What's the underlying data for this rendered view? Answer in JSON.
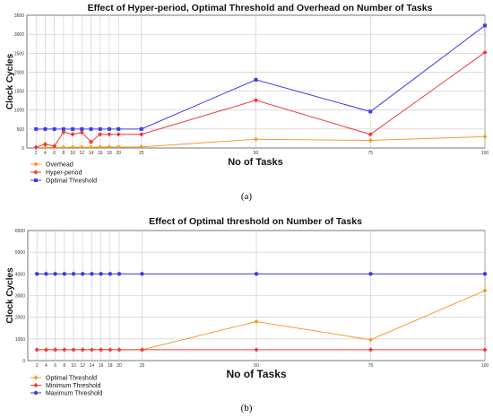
{
  "colors": {
    "orange": "#f39c2b",
    "red": "#f03a3a",
    "blue": "#3b3bea",
    "grid": "#c8c8c8",
    "axis": "#555555"
  },
  "captions": [
    "(a)",
    "(b)"
  ],
  "chart_data": [
    {
      "type": "line",
      "title": "Effect of Hyper-period, Optimal Threshold and Overhead on Number of Tasks",
      "xlabel": "No of Tasks",
      "ylabel": "Clock Cycles",
      "x": [
        2,
        4,
        6,
        8,
        10,
        12,
        14,
        16,
        18,
        20,
        25,
        50,
        75,
        100
      ],
      "xticks": [
        "2",
        "4",
        "6",
        "8",
        "10",
        "12",
        "14",
        "16",
        "18",
        "20",
        "25",
        "50",
        "75",
        "100"
      ],
      "ylim": [
        0,
        3500
      ],
      "yticks": [
        "0",
        "500",
        "1000",
        "1500",
        "2000",
        "2500",
        "3000",
        "3500"
      ],
      "grid": true,
      "legend_position": "bottom-left",
      "series": [
        {
          "name": "Overhead",
          "color": "#f39c2b",
          "marker": "diamond",
          "values": [
            10,
            14,
            16,
            18,
            20,
            22,
            22,
            24,
            26,
            28,
            30,
            230,
            200,
            300
          ]
        },
        {
          "name": "Hyper-period",
          "color": "#f03a3a",
          "marker": "diamond",
          "values": [
            20,
            100,
            50,
            420,
            360,
            410,
            160,
            360,
            360,
            360,
            360,
            1260,
            360,
            2520
          ]
        },
        {
          "name": "Optimal Threshold",
          "color": "#3b3bea",
          "marker": "square",
          "values": [
            500,
            500,
            500,
            500,
            500,
            500,
            500,
            500,
            500,
            500,
            500,
            1800,
            960,
            3230
          ]
        }
      ]
    },
    {
      "type": "line",
      "title": "Effect of Optimal threshold on Number of Tasks",
      "xlabel": "No of Tasks",
      "ylabel": "Clock Cycles",
      "x": [
        2,
        4,
        6,
        8,
        10,
        12,
        14,
        16,
        18,
        20,
        25,
        50,
        75,
        100
      ],
      "xticks": [
        "2",
        "4",
        "6",
        "8",
        "10",
        "12",
        "14",
        "16",
        "18",
        "20",
        "25",
        "50",
        "75",
        "100"
      ],
      "ylim": [
        0,
        6000
      ],
      "yticks": [
        "0",
        "1000",
        "2000",
        "3000",
        "4000",
        "5000",
        "6000"
      ],
      "grid": true,
      "legend_position": "bottom-left",
      "series": [
        {
          "name": "Optimal Threshold",
          "color": "#f39c2b",
          "marker": "diamond",
          "values": [
            500,
            500,
            500,
            500,
            500,
            500,
            500,
            500,
            500,
            500,
            500,
            1800,
            960,
            3230
          ]
        },
        {
          "name": "Minimum Threshold",
          "color": "#f03a3a",
          "marker": "diamond",
          "values": [
            500,
            500,
            500,
            500,
            500,
            500,
            500,
            500,
            500,
            500,
            500,
            500,
            500,
            500
          ]
        },
        {
          "name": "Maximum Threshold",
          "color": "#3b3bea",
          "marker": "circle",
          "values": [
            4000,
            4000,
            4000,
            4000,
            4000,
            4000,
            4000,
            4000,
            4000,
            4000,
            4000,
            4000,
            4000,
            4000
          ]
        }
      ]
    }
  ]
}
